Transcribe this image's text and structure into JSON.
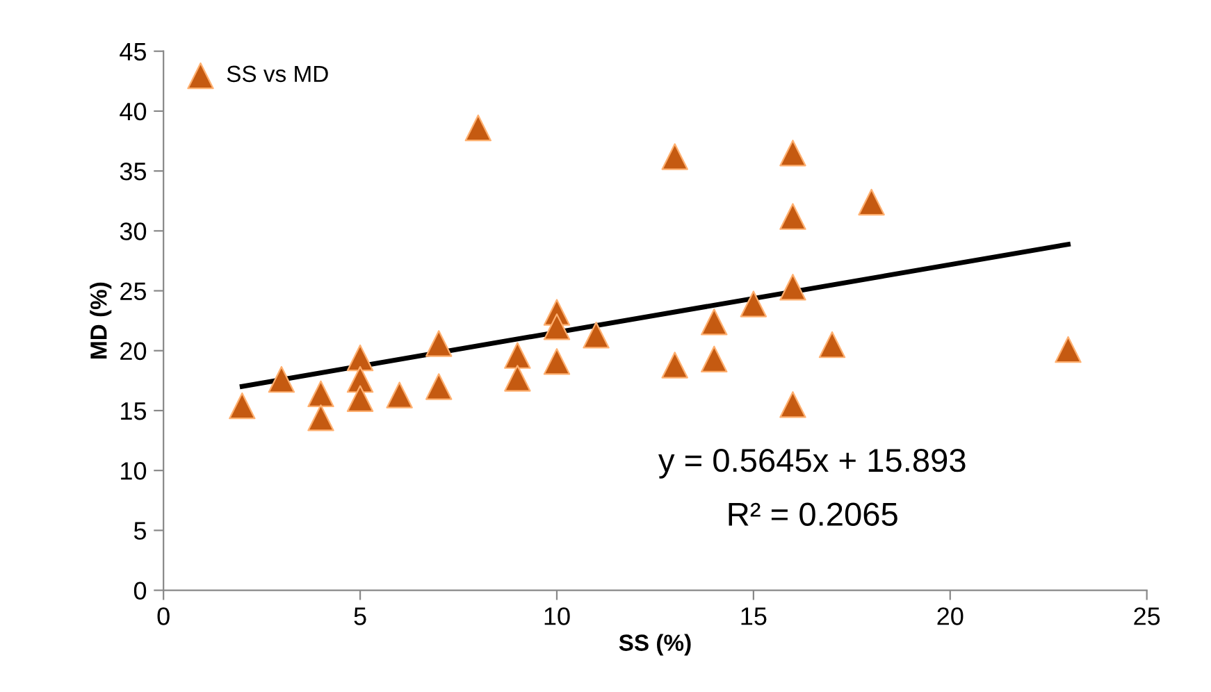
{
  "chart_data": {
    "type": "scatter",
    "xlabel": "SS (%)",
    "ylabel": "MD (%)",
    "xlim": [
      0,
      25
    ],
    "xticks": [
      0,
      5,
      10,
      15,
      20,
      25
    ],
    "ylim": [
      0,
      45
    ],
    "yticks": [
      0,
      5,
      10,
      15,
      20,
      25,
      30,
      35,
      40,
      45
    ],
    "grid": false,
    "legend": "top left",
    "marker": "triangle",
    "series": [
      {
        "name": "SS vs MD",
        "color": "#c55a11",
        "x": [
          2,
          3,
          4,
          4,
          5,
          5,
          5,
          6,
          7,
          7,
          8,
          9,
          9,
          10,
          10,
          10,
          11,
          13,
          13,
          14,
          14,
          15,
          16,
          16,
          16,
          16,
          17,
          18,
          23
        ],
        "values": [
          15.4,
          17.6,
          16.4,
          14.4,
          19.4,
          17.6,
          16,
          16.3,
          20.6,
          17,
          38.6,
          19.6,
          17.7,
          23.2,
          22,
          19.1,
          21.3,
          36.2,
          18.8,
          22.4,
          19.3,
          23.9,
          36.5,
          31.2,
          25.3,
          15.5,
          20.5,
          32.4,
          20.1
        ]
      },
      {
        "type": "line",
        "color": "#000000",
        "x": [
          2,
          23
        ],
        "values": [
          17.02,
          28.88
        ],
        "marker": "none"
      }
    ],
    "annotations": [
      "y = 0.5645x + 15.893",
      "R² = 0.2065"
    ]
  }
}
